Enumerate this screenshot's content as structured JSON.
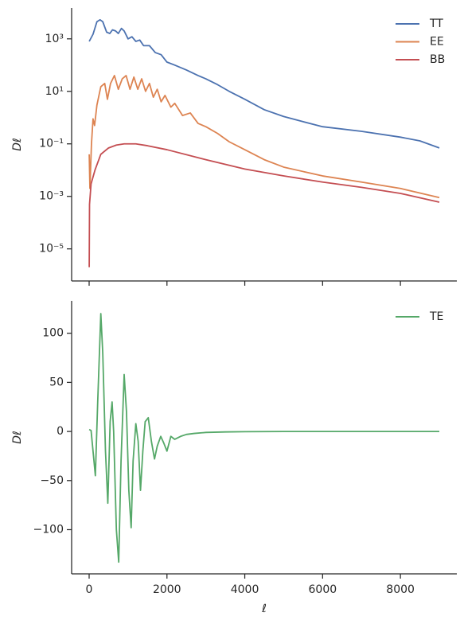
{
  "chart_data": [
    {
      "type": "line",
      "ylabel": "Dℓ",
      "yscale": "log",
      "legend": "upper right",
      "xlim": [
        -450,
        9450
      ],
      "ylim": [
        6e-07,
        15000
      ],
      "yticks": [
        {
          "value": 1e-05,
          "label": "10⁻⁵"
        },
        {
          "value": 0.001,
          "label": "10⁻³"
        },
        {
          "value": 0.1,
          "label": "10⁻¹"
        },
        {
          "value": 10,
          "label": "10¹"
        },
        {
          "value": 1000,
          "label": "10³"
        }
      ],
      "series": [
        {
          "name": "TT",
          "color": "#4c72b0",
          "x": [
            2,
            100,
            200,
            280,
            350,
            450,
            530,
            600,
            680,
            750,
            830,
            900,
            1000,
            1100,
            1200,
            1300,
            1400,
            1550,
            1700,
            1850,
            2000,
            2200,
            2500,
            2800,
            3000,
            3300,
            3600,
            4000,
            4500,
            5000,
            5500,
            6000,
            7000,
            8000,
            8500,
            9000
          ],
          "values": [
            800,
            1500,
            4500,
            5300,
            4500,
            1800,
            1600,
            2200,
            2000,
            1600,
            2500,
            2000,
            1000,
            1200,
            800,
            900,
            550,
            550,
            300,
            250,
            130,
            100,
            65,
            40,
            30,
            18,
            10,
            5,
            2,
            1.1,
            0.7,
            0.45,
            0.3,
            0.18,
            0.13,
            0.07
          ]
        },
        {
          "name": "EE",
          "color": "#dd8452",
          "x": [
            2,
            20,
            60,
            100,
            140,
            200,
            300,
            400,
            470,
            550,
            650,
            750,
            850,
            950,
            1050,
            1150,
            1250,
            1350,
            1450,
            1550,
            1650,
            1750,
            1850,
            1950,
            2100,
            2200,
            2400,
            2600,
            2800,
            3000,
            3300,
            3600,
            4000,
            4500,
            5000,
            6000,
            7000,
            8000,
            9000
          ],
          "values": [
            0.04,
            0.002,
            0.1,
            0.9,
            0.5,
            3,
            15,
            20,
            5,
            20,
            40,
            12,
            30,
            40,
            12,
            35,
            12,
            30,
            10,
            20,
            6,
            12,
            4,
            7,
            2.5,
            3.5,
            1.2,
            1.5,
            0.6,
            0.45,
            0.25,
            0.12,
            0.06,
            0.025,
            0.013,
            0.006,
            0.0035,
            0.002,
            0.0009
          ]
        },
        {
          "name": "BB",
          "color": "#c44e52",
          "x": [
            2,
            10,
            50,
            150,
            300,
            500,
            700,
            900,
            1200,
            1500,
            2000,
            3000,
            4000,
            5000,
            6000,
            7000,
            8000,
            9000
          ],
          "values": [
            2e-06,
            0.0005,
            0.003,
            0.01,
            0.04,
            0.07,
            0.09,
            0.1,
            0.1,
            0.085,
            0.06,
            0.025,
            0.011,
            0.006,
            0.0035,
            0.0022,
            0.0013,
            0.0006
          ]
        }
      ]
    },
    {
      "type": "line",
      "ylabel": "Dℓ",
      "xlabel": "ℓ",
      "legend": "upper right",
      "xlim": [
        -450,
        9450
      ],
      "ylim": [
        -145,
        133
      ],
      "xticks": [
        0,
        2000,
        4000,
        6000,
        8000
      ],
      "yticks": [
        {
          "value": -100,
          "label": "−100"
        },
        {
          "value": -50,
          "label": "−50"
        },
        0,
        50,
        100
      ],
      "series": [
        {
          "name": "TE",
          "color": "#55a868",
          "x": [
            2,
            50,
            100,
            160,
            220,
            300,
            350,
            420,
            480,
            540,
            590,
            630,
            700,
            760,
            820,
            900,
            960,
            1020,
            1080,
            1130,
            1200,
            1260,
            1320,
            1380,
            1440,
            1520,
            1600,
            1680,
            1750,
            1840,
            1920,
            2000,
            2100,
            2200,
            2350,
            2500,
            2700,
            3000,
            3500,
            4000,
            5000,
            9000
          ],
          "values": [
            2,
            1,
            -20,
            -45,
            30,
            120,
            80,
            -20,
            -73,
            10,
            30,
            0,
            -100,
            -133,
            -30,
            58,
            20,
            -60,
            -98,
            -30,
            8,
            -10,
            -60,
            -20,
            10,
            14,
            -10,
            -28,
            -15,
            -5,
            -12,
            -20,
            -5,
            -8,
            -5,
            -3,
            -2,
            -1,
            -0.5,
            -0.2,
            0,
            0
          ]
        }
      ]
    }
  ]
}
